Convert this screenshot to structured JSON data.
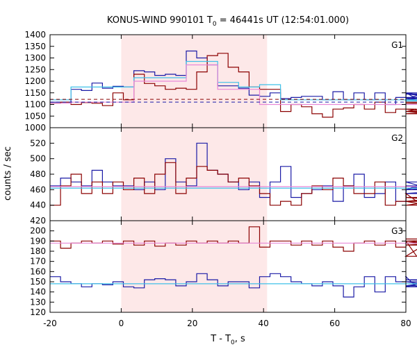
{
  "chart_data": {
    "type": "line",
    "title": {
      "prefix": "KONUS-WIND 990101 T",
      "sub": "0",
      "suffix": " = 46441s UT (12:54:01.000)"
    },
    "xlabel": {
      "prefix": "T - T",
      "sub": "0",
      "suffix": ", s"
    },
    "ylabel": "counts / sec",
    "xlim": [
      -20,
      80
    ],
    "xticks": [
      -20,
      0,
      20,
      40,
      60,
      80
    ],
    "highlight": {
      "x0": 0,
      "x1": 41,
      "color": "#fde8e8"
    },
    "grid": false,
    "colors": {
      "blue": "#1a1aa6",
      "red": "#8b0000",
      "cyan": "#3ec0e8",
      "pink": "#e888d8"
    },
    "panels": [
      {
        "label": "G1",
        "ylim": [
          1000,
          1400
        ],
        "yticks": [
          1000,
          1050,
          1100,
          1150,
          1200,
          1250,
          1300,
          1350,
          1400
        ],
        "bin_start": -20,
        "bin_width": 2.944,
        "series": [
          {
            "color": "blue",
            "values": [
              1110,
              1110,
              1165,
              1160,
              1192,
              1170,
              1178,
              1175,
              1245,
              1240,
              1225,
              1230,
              1225,
              1330,
              1300,
              1270,
              1180,
              1180,
              1170,
              1140,
              1135,
              1150,
              1125,
              1130,
              1135,
              1135,
              1120,
              1155,
              1120,
              1150,
              1120,
              1150,
              1100,
              1130,
              1150,
              1125,
              1150,
              1130,
              1120,
              1145,
              1120
            ]
          },
          {
            "color": "red",
            "values": [
              1105,
              1110,
              1100,
              1108,
              1105,
              1095,
              1150,
              1120,
              1230,
              1190,
              1180,
              1165,
              1170,
              1165,
              1240,
              1310,
              1320,
              1260,
              1240,
              1175,
              1165,
              1165,
              1070,
              1100,
              1090,
              1060,
              1045,
              1080,
              1085,
              1100,
              1080,
              1110,
              1065,
              1080,
              1080,
              1080,
              1070,
              1060,
              1070,
              1105,
              1110
            ]
          },
          {
            "color": "cyan",
            "values": [
              1120,
              1120,
              1175,
              1175,
              1175,
              1175,
              1175,
              1175,
              1215,
              1215,
              1215,
              1215,
              1215,
              1285,
              1285,
              1285,
              1195,
              1195,
              1175,
              1175,
              1185,
              1185,
              1120,
              1120,
              1120,
              1120,
              1120,
              1120,
              1120,
              1120,
              1120,
              1120,
              1120,
              1120,
              1120,
              1120,
              1120,
              1120,
              1120,
              1115,
              1115
            ]
          },
          {
            "color": "pink",
            "values": [
              1105,
              1105,
              1110,
              1110,
              1110,
              1110,
              1110,
              1110,
              1200,
              1200,
              1200,
              1200,
              1200,
              1270,
              1270,
              1270,
              1165,
              1165,
              1165,
              1165,
              1100,
              1100,
              1100,
              1100,
              1100,
              1100,
              1100,
              1100,
              1100,
              1100,
              1100,
              1100,
              1100,
              1100,
              1100,
              1100,
              1100,
              1100,
              1100,
              1100,
              1100
            ]
          }
        ],
        "dashed": [
          {
            "color": "blue",
            "y": 1110
          },
          {
            "color": "red",
            "y": 1122
          }
        ]
      },
      {
        "label": "G2",
        "ylim": [
          420,
          540
        ],
        "yticks": [
          420,
          440,
          460,
          480,
          500,
          520
        ],
        "bin_start": -20,
        "bin_width": 2.944,
        "series": [
          {
            "color": "blue",
            "values": [
              465,
              475,
              470,
              465,
              485,
              470,
              465,
              465,
              460,
              470,
              460,
              500,
              470,
              465,
              520,
              485,
              480,
              470,
              460,
              470,
              450,
              470,
              490,
              450,
              455,
              460,
              465,
              445,
              465,
              480,
              450,
              455,
              470,
              445,
              460,
              465,
              460,
              470,
              455,
              460,
              465
            ]
          },
          {
            "color": "red",
            "values": [
              440,
              465,
              480,
              455,
              470,
              455,
              470,
              460,
              475,
              455,
              480,
              495,
              455,
              475,
              490,
              485,
              480,
              470,
              475,
              465,
              455,
              440,
              445,
              440,
              455,
              465,
              460,
              475,
              465,
              455,
              455,
              470,
              440,
              445,
              455,
              445,
              440,
              445,
              450,
              445,
              450
            ]
          },
          {
            "color": "cyan",
            "values": [
              462,
              462,
              462,
              462,
              462,
              462,
              462,
              462,
              462,
              462,
              462,
              462,
              462,
              462,
              462,
              462,
              462,
              462,
              462,
              462,
              462,
              462,
              462,
              462,
              462,
              462,
              462,
              462,
              462,
              462,
              462,
              462,
              462,
              462,
              462,
              462,
              462,
              462,
              462,
              462,
              462
            ]
          },
          {
            "color": "pink",
            "values": [
              464,
              464,
              464,
              464,
              464,
              464,
              464,
              464,
              464,
              464,
              464,
              464,
              464,
              464,
              464,
              464,
              464,
              464,
              464,
              464,
              464,
              464,
              464,
              464,
              464,
              464,
              464,
              464,
              464,
              464,
              464,
              464,
              464,
              464,
              464,
              464,
              464,
              464,
              464,
              464,
              464
            ]
          }
        ],
        "dashed": []
      },
      {
        "label": "G3",
        "ylim": [
          120,
          210
        ],
        "yticks": [
          120,
          130,
          140,
          150,
          160,
          170,
          180,
          190,
          200
        ],
        "bin_start": -20,
        "bin_width": 2.944,
        "series": [
          {
            "color": "blue",
            "values": [
              155,
              150,
              148,
              145,
              148,
              147,
              150,
              145,
              144,
              152,
              153,
              152,
              146,
              150,
              158,
              152,
              146,
              150,
              150,
              144,
              155,
              158,
              155,
              150,
              148,
              146,
              150,
              146,
              135,
              145,
              155,
              140,
              155,
              150,
              155,
              145,
              150,
              146,
              152,
              150,
              150
            ]
          },
          {
            "color": "red",
            "values": [
              190,
              183,
              188,
              190,
              188,
              190,
              187,
              190,
              186,
              190,
              185,
              188,
              186,
              190,
              188,
              190,
              188,
              190,
              188,
              204,
              184,
              190,
              190,
              186,
              190,
              186,
              190,
              184,
              180,
              188,
              190,
              186,
              190,
              184,
              190,
              175,
              188,
              190,
              186,
              190,
              192
            ]
          },
          {
            "color": "cyan",
            "values": [
              148,
              148,
              148,
              148,
              148,
              148,
              148,
              148,
              148,
              148,
              148,
              148,
              148,
              148,
              148,
              148,
              148,
              148,
              148,
              148,
              148,
              148,
              148,
              148,
              148,
              148,
              148,
              148,
              148,
              148,
              148,
              148,
              148,
              148,
              148,
              148,
              148,
              148,
              148,
              148,
              148
            ]
          },
          {
            "color": "pink",
            "values": [
              188,
              188,
              188,
              188,
              188,
              188,
              188,
              188,
              188,
              188,
              188,
              188,
              188,
              188,
              188,
              188,
              188,
              188,
              188,
              188,
              188,
              188,
              188,
              188,
              188,
              188,
              188,
              188,
              188,
              188,
              188,
              188,
              188,
              188,
              188,
              188,
              188,
              188,
              188,
              188,
              188
            ]
          }
        ],
        "dashed": []
      }
    ]
  }
}
